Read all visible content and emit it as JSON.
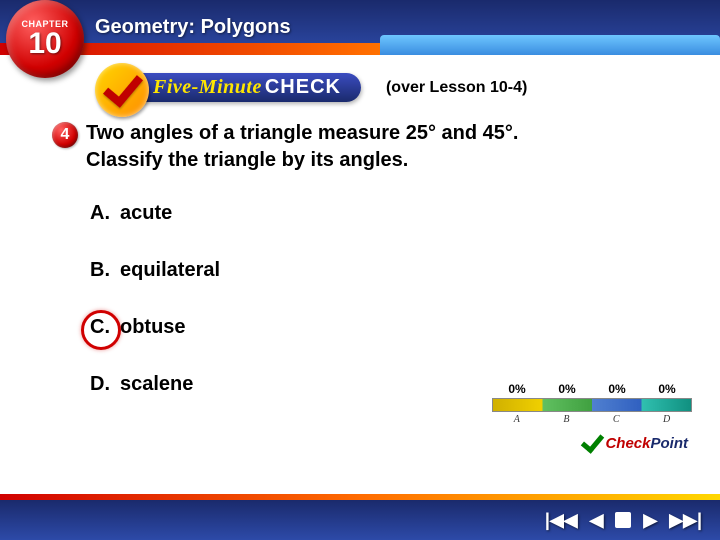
{
  "chapter": {
    "label": "CHAPTER",
    "number": "10"
  },
  "header": {
    "title": "Geometry: Polygons"
  },
  "fmc": {
    "brand_part1": "Five-Minute",
    "brand_part2": "CHECK",
    "over": "(over Lesson 10-4)"
  },
  "question": {
    "bullet_number": "4",
    "text_line1": "Two angles of a triangle measure 25° and 45°.",
    "text_line2": "Classify the triangle by its angles."
  },
  "choices": [
    {
      "letter": "A.",
      "text": "acute",
      "correct": false
    },
    {
      "letter": "B.",
      "text": "equilateral",
      "correct": false
    },
    {
      "letter": "C.",
      "text": "obtuse",
      "correct": true
    },
    {
      "letter": "D.",
      "text": "scalene",
      "correct": false
    }
  ],
  "response_chart": {
    "percents": [
      "0%",
      "0%",
      "0%",
      "0%"
    ],
    "labels": [
      "A",
      "B",
      "C",
      "D"
    ],
    "segment_colors": [
      "#e2c200",
      "#4caf50",
      "#3f6fd1",
      "#1fb89e"
    ]
  },
  "checkpoint": {
    "part1": "Check",
    "part2": "Point"
  },
  "colors": {
    "header_bg_top": "#1a2a6c",
    "header_bg_bottom": "#2d4aa8",
    "accent_red": "#d00000",
    "accent_yellow": "#ffe600",
    "stripe_from": "#d00000",
    "stripe_mid": "#ff6b00",
    "stripe_to": "#ffd700",
    "correct_ring": "#d00000"
  },
  "fonts": {
    "body": "Arial",
    "question_size_pt": 15,
    "choice_size_pt": 15,
    "header_size_pt": 15
  }
}
